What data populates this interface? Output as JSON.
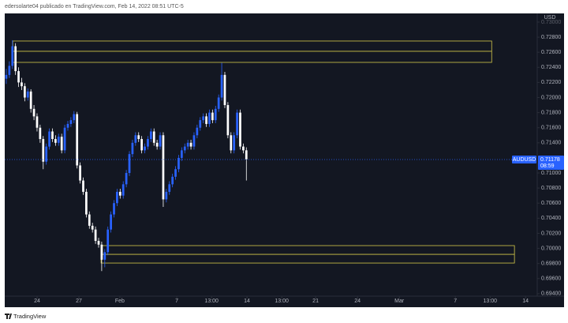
{
  "header": {
    "publisher_line": "edersolarte04 publicado en TradingView.com, Feb 14, 2022 08:51 UTC-5"
  },
  "footer": {
    "brand": "TradingView"
  },
  "chart_data": {
    "type": "candlestick",
    "y_axis_label": "USD",
    "up_color": "#2962ff",
    "down_color": "#ffffff",
    "grid": false,
    "open": [
      0.7225,
      0.723,
      0.7242,
      0.7268,
      0.7235,
      0.722,
      0.7215,
      0.72,
      0.7208,
      0.7185,
      0.7175,
      0.716,
      0.7145,
      0.7115,
      0.7135,
      0.7155,
      0.7145,
      0.714,
      0.7148,
      0.713,
      0.716,
      0.7165,
      0.717,
      0.7178,
      0.711,
      0.709,
      0.7075,
      0.7045,
      0.703,
      0.7025,
      0.701,
      0.7005,
      0.6985,
      0.6995,
      0.7025,
      0.7045,
      0.706,
      0.7075,
      0.707,
      0.7085,
      0.71,
      0.7125,
      0.714,
      0.715,
      0.7145,
      0.713,
      0.7135,
      0.7145,
      0.7155,
      0.714,
      0.7135,
      0.715,
      0.7065,
      0.7075,
      0.7085,
      0.7095,
      0.7105,
      0.712,
      0.713,
      0.7135,
      0.714,
      0.7135,
      0.715,
      0.716,
      0.717,
      0.7175,
      0.7165,
      0.718,
      0.717,
      0.7185,
      0.72,
      0.723,
      0.719,
      0.715,
      0.713,
      0.715,
      0.718,
      0.7135,
      0.713
    ],
    "high": [
      0.7238,
      0.7248,
      0.7276,
      0.7272,
      0.724,
      0.7226,
      0.7219,
      0.7212,
      0.7211,
      0.719,
      0.7179,
      0.7164,
      0.7149,
      0.7139,
      0.7159,
      0.7159,
      0.715,
      0.7152,
      0.7152,
      0.7164,
      0.7169,
      0.7174,
      0.7182,
      0.7181,
      0.7114,
      0.7094,
      0.7079,
      0.7049,
      0.7034,
      0.7029,
      0.7014,
      0.7009,
      0.6999,
      0.7029,
      0.7049,
      0.7064,
      0.7079,
      0.7079,
      0.7089,
      0.7104,
      0.7129,
      0.7144,
      0.7154,
      0.7154,
      0.7149,
      0.7139,
      0.7149,
      0.7159,
      0.7159,
      0.7144,
      0.7154,
      0.7154,
      0.7079,
      0.7089,
      0.7099,
      0.7109,
      0.7124,
      0.7134,
      0.7139,
      0.7144,
      0.7144,
      0.7154,
      0.7164,
      0.7174,
      0.7179,
      0.7179,
      0.7184,
      0.7184,
      0.7189,
      0.7204,
      0.7246,
      0.7234,
      0.7194,
      0.7154,
      0.7154,
      0.7184,
      0.7184,
      0.7139,
      0.7134
    ],
    "low": [
      0.7218,
      0.7226,
      0.7238,
      0.723,
      0.7214,
      0.721,
      0.7195,
      0.7196,
      0.718,
      0.717,
      0.7155,
      0.714,
      0.7105,
      0.7111,
      0.7131,
      0.7141,
      0.7136,
      0.7136,
      0.7126,
      0.7126,
      0.7156,
      0.7161,
      0.7166,
      0.7106,
      0.7086,
      0.7071,
      0.7041,
      0.7026,
      0.7021,
      0.7006,
      0.7001,
      0.697,
      0.6975,
      0.6991,
      0.7021,
      0.7041,
      0.7056,
      0.7066,
      0.7066,
      0.7081,
      0.7096,
      0.7121,
      0.7136,
      0.7141,
      0.7126,
      0.7126,
      0.7131,
      0.7141,
      0.7136,
      0.7131,
      0.7131,
      0.7055,
      0.7061,
      0.7071,
      0.7081,
      0.7091,
      0.7101,
      0.7116,
      0.7126,
      0.7131,
      0.7131,
      0.7131,
      0.7146,
      0.7156,
      0.7166,
      0.7161,
      0.7161,
      0.7166,
      0.7166,
      0.7181,
      0.7196,
      0.7186,
      0.7146,
      0.7126,
      0.7126,
      0.7146,
      0.7131,
      0.7126,
      0.709
    ],
    "close": [
      0.723,
      0.7242,
      0.7268,
      0.7235,
      0.722,
      0.7215,
      0.72,
      0.7208,
      0.7185,
      0.7175,
      0.716,
      0.7145,
      0.7115,
      0.7135,
      0.7155,
      0.7145,
      0.714,
      0.7148,
      0.713,
      0.716,
      0.7165,
      0.717,
      0.7178,
      0.711,
      0.709,
      0.7075,
      0.7045,
      0.703,
      0.7025,
      0.701,
      0.7005,
      0.6985,
      0.6995,
      0.7025,
      0.7045,
      0.706,
      0.7075,
      0.707,
      0.7085,
      0.71,
      0.7125,
      0.714,
      0.715,
      0.7145,
      0.713,
      0.7135,
      0.7145,
      0.7155,
      0.714,
      0.7135,
      0.715,
      0.7065,
      0.7075,
      0.7085,
      0.7095,
      0.7105,
      0.712,
      0.713,
      0.7135,
      0.714,
      0.7135,
      0.715,
      0.716,
      0.717,
      0.7175,
      0.7165,
      0.718,
      0.717,
      0.7185,
      0.72,
      0.723,
      0.719,
      0.715,
      0.713,
      0.715,
      0.718,
      0.7135,
      0.713,
      0.7118
    ],
    "ylim": [
      0.69367,
      0.73115
    ],
    "yticks": [
      {
        "value": 0.73,
        "label": "0.73000"
      },
      {
        "value": 0.728,
        "label": "0.72800"
      },
      {
        "value": 0.726,
        "label": "0.72600"
      },
      {
        "value": 0.724,
        "label": "0.72400"
      },
      {
        "value": 0.722,
        "label": "0.72200"
      },
      {
        "value": 0.72,
        "label": "0.72000"
      },
      {
        "value": 0.718,
        "label": "0.71800"
      },
      {
        "value": 0.716,
        "label": "0.71600"
      },
      {
        "value": 0.714,
        "label": "0.71400"
      },
      {
        "value": 0.71,
        "label": "0.71000"
      },
      {
        "value": 0.708,
        "label": "0.70800"
      },
      {
        "value": 0.706,
        "label": "0.70600"
      },
      {
        "value": 0.704,
        "label": "0.70400"
      },
      {
        "value": 0.702,
        "label": "0.70200"
      },
      {
        "value": 0.7,
        "label": "0.70000"
      },
      {
        "value": 0.698,
        "label": "0.69800"
      },
      {
        "value": 0.696,
        "label": "0.69600"
      },
      {
        "value": 0.694,
        "label": "0.69400"
      }
    ],
    "xlim": [
      0,
      173
    ],
    "xticks": [
      {
        "value": 10.5,
        "label": "24"
      },
      {
        "value": 24.1,
        "label": "27"
      },
      {
        "value": 37.4,
        "label": "Feb"
      },
      {
        "value": 55.9,
        "label": "7"
      },
      {
        "value": 67.2,
        "label": "13:00"
      },
      {
        "value": 78.7,
        "label": "14"
      },
      {
        "value": 90,
        "label": "13:00"
      },
      {
        "value": 101,
        "label": "21"
      },
      {
        "value": 114.6,
        "label": "24"
      },
      {
        "value": 128.2,
        "label": "Mar"
      },
      {
        "value": 146.4,
        "label": "7"
      },
      {
        "value": 157.7,
        "label": "13:00"
      },
      {
        "value": 169.2,
        "label": "14"
      }
    ],
    "zones": [
      {
        "top": 0.72749,
        "mid": 0.72613,
        "bottom": 0.72466,
        "x0": 2.6,
        "x1": 158.2,
        "color": "#d4c84a"
      },
      {
        "top": 0.70037,
        "mid": 0.69921,
        "bottom": 0.69806,
        "x0": 31.3,
        "x1": 165.6,
        "color": "#d4c84a"
      }
    ],
    "last_price": {
      "symbol": "AUDUSD",
      "value": 0.71178,
      "countdown": "08:59",
      "color": "#2962ff"
    }
  }
}
